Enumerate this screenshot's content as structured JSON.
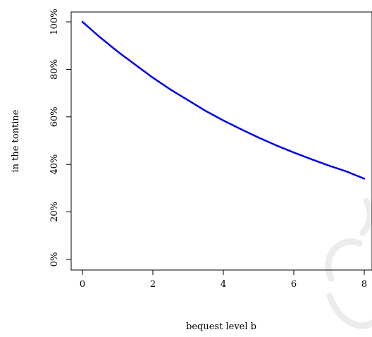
{
  "chart_data": {
    "type": "line",
    "title": "",
    "xlabel": "bequest level b",
    "ylabel": "in the tontine",
    "xlim": [
      0,
      8
    ],
    "ylim": [
      0,
      1
    ],
    "x_ticks": [
      0,
      2,
      4,
      6,
      8
    ],
    "x_tick_labels": [
      "0",
      "2",
      "4",
      "6",
      "8"
    ],
    "y_ticks": [
      0,
      0.2,
      0.4,
      0.6,
      0.8,
      1.0
    ],
    "y_tick_labels": [
      "0%",
      "20%",
      "40%",
      "60%",
      "80%",
      "100%"
    ],
    "grid": false,
    "legend": "none",
    "series": [
      {
        "color": "#0000ee",
        "x": [
          0,
          0.5,
          1,
          1.5,
          2,
          2.5,
          3,
          3.5,
          4,
          4.5,
          5,
          5.5,
          6,
          6.5,
          7,
          7.5,
          8
        ],
        "values": [
          1.0,
          0.935,
          0.875,
          0.82,
          0.765,
          0.715,
          0.67,
          0.625,
          0.585,
          0.548,
          0.513,
          0.48,
          0.45,
          0.422,
          0.395,
          0.37,
          0.34
        ]
      }
    ]
  }
}
